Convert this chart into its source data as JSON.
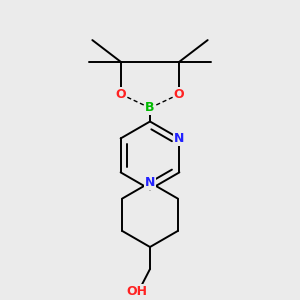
{
  "bg_color": "#ebebeb",
  "atom_colors": {
    "B": "#00bb00",
    "O": "#ff2222",
    "N": "#2222ff",
    "C": "#000000"
  },
  "bond_color": "#000000",
  "bond_width": 1.4,
  "dbo": 0.015
}
